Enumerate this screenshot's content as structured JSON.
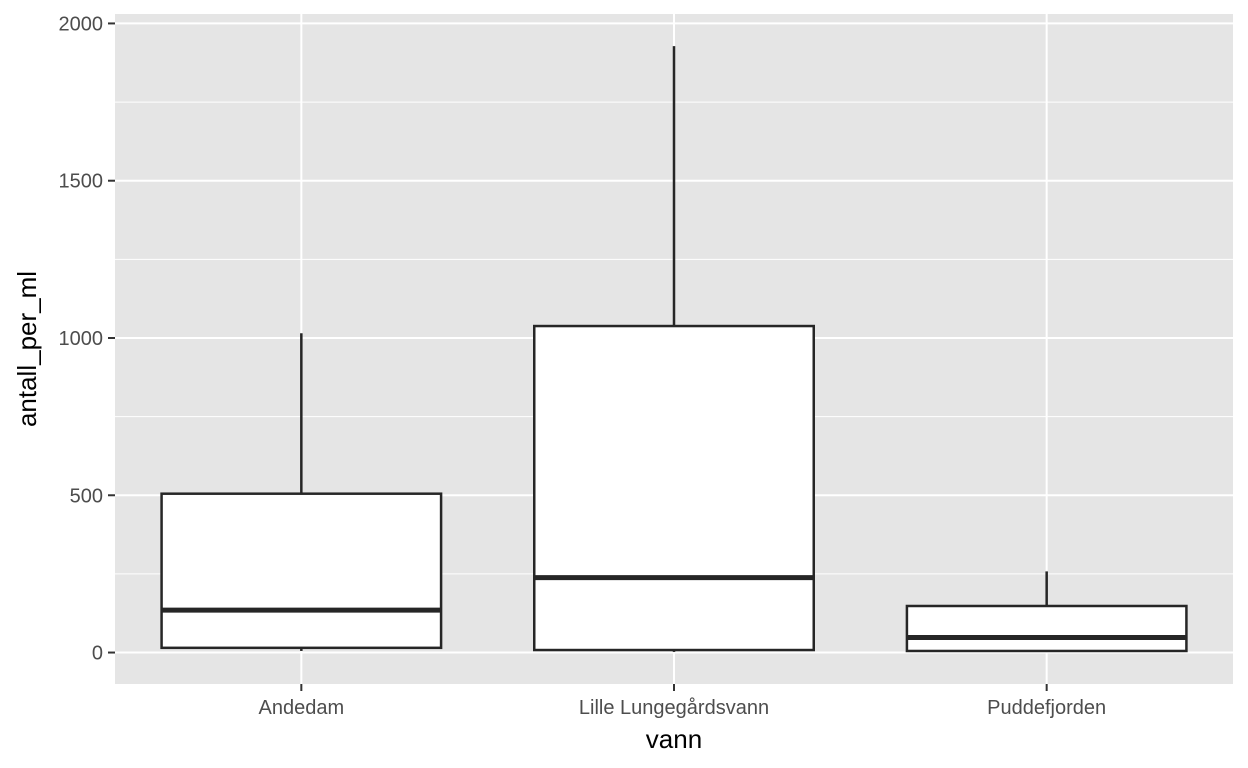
{
  "chart_data": {
    "type": "boxplot",
    "xlabel": "vann",
    "ylabel": "antall_per_ml",
    "categories": [
      "Andedam",
      "Lille Lungegårdsvann",
      "Puddefjorden"
    ],
    "boxes": [
      {
        "category": "Andedam",
        "whisker_low": 5,
        "q1": 15,
        "median": 135,
        "q3": 505,
        "whisker_high": 1015
      },
      {
        "category": "Lille Lungegårdsvann",
        "whisker_low": 2,
        "q1": 8,
        "median": 238,
        "q3": 1038,
        "whisker_high": 1928
      },
      {
        "category": "Puddefjorden",
        "whisker_low": 3,
        "q1": 5,
        "median": 48,
        "q3": 148,
        "whisker_high": 258
      }
    ],
    "ylim": [
      -100,
      2030
    ],
    "yticks": [
      0,
      500,
      1000,
      1500,
      2000
    ],
    "grid": true,
    "colors": {
      "panel_background": "#e5e5e5",
      "grid_line": "#ffffff",
      "box_fill": "#ffffff",
      "box_stroke": "#262626",
      "tick_mark": "#333333"
    }
  }
}
